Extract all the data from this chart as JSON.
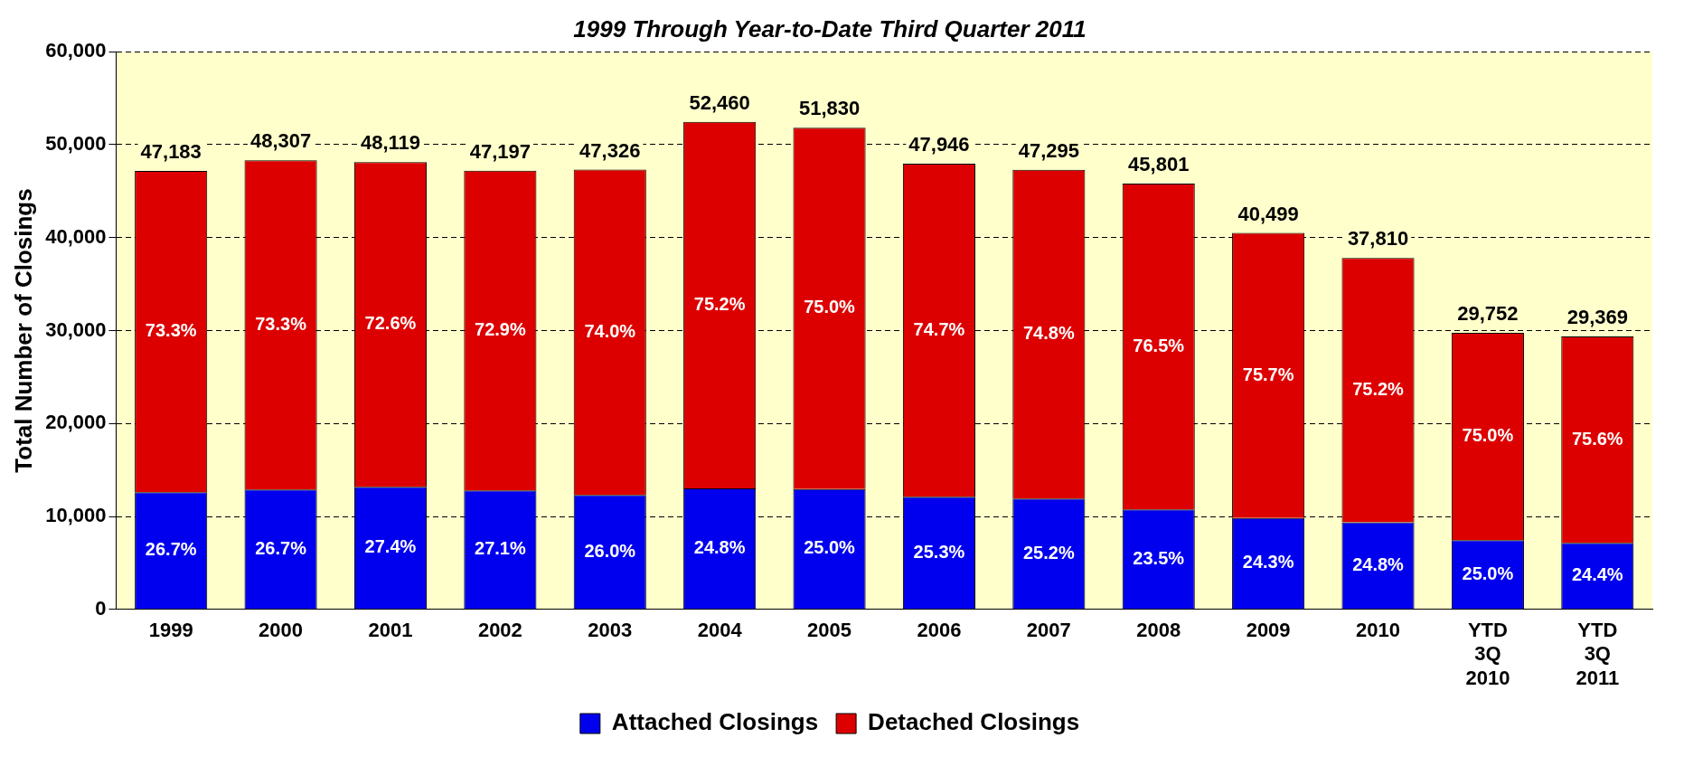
{
  "chart_data": {
    "type": "bar",
    "title": "1999 Through Year-to-Date Third Quarter 2011",
    "ylabel": "Total Number of Closings",
    "stacked": true,
    "categories": [
      "1999",
      "2000",
      "2001",
      "2002",
      "2003",
      "2004",
      "2005",
      "2006",
      "2007",
      "2008",
      "2009",
      "2010",
      "YTD 3Q 2010",
      "YTD 3Q 2011"
    ],
    "series": [
      {
        "name": "Attached Closings",
        "color": "#0000ee",
        "values": [
          12598,
          12898,
          13185,
          12790,
          12305,
          13010,
          12958,
          12130,
          11918,
          10763,
          9841,
          9377,
          7438,
          7166
        ]
      },
      {
        "name": "Detached Closings",
        "color": "#dd0000",
        "values": [
          34585,
          35409,
          34934,
          34407,
          35021,
          39450,
          38872,
          35816,
          35377,
          35038,
          30658,
          28433,
          22314,
          22203
        ]
      }
    ],
    "totals": [
      "47,183",
      "48,307",
      "48,119",
      "47,197",
      "47,326",
      "52,460",
      "51,830",
      "47,946",
      "47,295",
      "45,801",
      "40,499",
      "37,810",
      "29,752",
      "29,369"
    ],
    "annotations": [
      "26.7%",
      "26.7%",
      "27.4%",
      "27.1%",
      "26.0%",
      "24.8%",
      "25.0%",
      "25.3%",
      "25.2%",
      "23.5%",
      "24.3%",
      "24.8%",
      "25.0%",
      "24.4%",
      "73.3%",
      "73.3%",
      "72.6%",
      "72.9%",
      "74.0%",
      "75.2%",
      "75.0%",
      "74.7%",
      "74.8%",
      "76.5%",
      "75.7%",
      "75.2%",
      "75.0%",
      "75.6%"
    ],
    "ylim": [
      0,
      60000
    ],
    "yticks": [
      0,
      {
        "value": 10000,
        "label": "10,000"
      },
      {
        "value": 20000,
        "label": "20,000"
      },
      {
        "value": 30000,
        "label": "30,000"
      },
      {
        "value": 40000,
        "label": "40,000"
      },
      {
        "value": 50000,
        "label": "50,000"
      },
      {
        "value": 60000,
        "label": "60,000"
      }
    ],
    "grid": "y",
    "legend": "bottom"
  }
}
